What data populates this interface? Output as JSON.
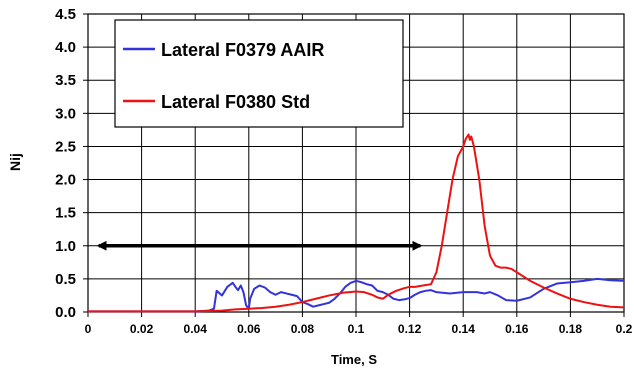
{
  "chart_data": {
    "type": "line",
    "title": "",
    "xlabel": "Time, S",
    "ylabel": "Nij",
    "xlim": [
      0,
      0.2
    ],
    "ylim": [
      0,
      4.5
    ],
    "x_ticks": [
      0,
      0.02,
      0.04,
      0.06,
      0.08,
      0.1,
      0.12,
      0.14,
      0.16,
      0.18,
      0.2
    ],
    "x_tick_labels": [
      "0",
      "0.02",
      "0.04",
      "0.06",
      "0.08",
      "0.1",
      "0.12",
      "0.14",
      "0.16",
      "0.18",
      "0.2"
    ],
    "y_ticks": [
      0,
      0.5,
      1,
      1.5,
      2,
      2.5,
      3,
      3.5,
      4,
      4.5
    ],
    "y_tick_labels": [
      "0.0",
      "0.5",
      "1.0",
      "1.5",
      "2.0",
      "2.5",
      "3.0",
      "3.5",
      "4.0",
      "4.5"
    ],
    "grid": true,
    "legend_position": "top-left",
    "series": [
      {
        "name": "Lateral F0379 AAIR",
        "color": "#3333dd",
        "points": [
          [
            0,
            0.01
          ],
          [
            0.02,
            0.01
          ],
          [
            0.04,
            0.01
          ],
          [
            0.045,
            0.02
          ],
          [
            0.047,
            0.05
          ],
          [
            0.048,
            0.32
          ],
          [
            0.05,
            0.25
          ],
          [
            0.052,
            0.38
          ],
          [
            0.054,
            0.44
          ],
          [
            0.055,
            0.38
          ],
          [
            0.056,
            0.33
          ],
          [
            0.057,
            0.4
          ],
          [
            0.058,
            0.3
          ],
          [
            0.059,
            0.1
          ],
          [
            0.06,
            0.05
          ],
          [
            0.0605,
            0.2
          ],
          [
            0.062,
            0.35
          ],
          [
            0.064,
            0.4
          ],
          [
            0.066,
            0.37
          ],
          [
            0.068,
            0.3
          ],
          [
            0.07,
            0.26
          ],
          [
            0.072,
            0.3
          ],
          [
            0.074,
            0.28
          ],
          [
            0.076,
            0.26
          ],
          [
            0.078,
            0.24
          ],
          [
            0.08,
            0.15
          ],
          [
            0.082,
            0.12
          ],
          [
            0.084,
            0.08
          ],
          [
            0.086,
            0.1
          ],
          [
            0.088,
            0.12
          ],
          [
            0.09,
            0.14
          ],
          [
            0.092,
            0.2
          ],
          [
            0.094,
            0.28
          ],
          [
            0.096,
            0.38
          ],
          [
            0.098,
            0.44
          ],
          [
            0.1,
            0.47
          ],
          [
            0.102,
            0.45
          ],
          [
            0.104,
            0.42
          ],
          [
            0.106,
            0.4
          ],
          [
            0.108,
            0.32
          ],
          [
            0.11,
            0.3
          ],
          [
            0.112,
            0.26
          ],
          [
            0.114,
            0.2
          ],
          [
            0.116,
            0.18
          ],
          [
            0.118,
            0.19
          ],
          [
            0.12,
            0.21
          ],
          [
            0.122,
            0.26
          ],
          [
            0.124,
            0.3
          ],
          [
            0.126,
            0.32
          ],
          [
            0.128,
            0.33
          ],
          [
            0.13,
            0.3
          ],
          [
            0.135,
            0.28
          ],
          [
            0.14,
            0.3
          ],
          [
            0.145,
            0.3
          ],
          [
            0.148,
            0.28
          ],
          [
            0.15,
            0.3
          ],
          [
            0.153,
            0.25
          ],
          [
            0.156,
            0.18
          ],
          [
            0.16,
            0.17
          ],
          [
            0.165,
            0.22
          ],
          [
            0.17,
            0.35
          ],
          [
            0.175,
            0.43
          ],
          [
            0.18,
            0.45
          ],
          [
            0.185,
            0.47
          ],
          [
            0.19,
            0.5
          ],
          [
            0.195,
            0.48
          ],
          [
            0.2,
            0.47
          ]
        ]
      },
      {
        "name": "Lateral F0380 Std",
        "color": "#ee1111",
        "points": [
          [
            0,
            0.01
          ],
          [
            0.02,
            0.01
          ],
          [
            0.04,
            0.01
          ],
          [
            0.05,
            0.02
          ],
          [
            0.055,
            0.04
          ],
          [
            0.06,
            0.05
          ],
          [
            0.065,
            0.06
          ],
          [
            0.07,
            0.08
          ],
          [
            0.075,
            0.11
          ],
          [
            0.08,
            0.15
          ],
          [
            0.085,
            0.2
          ],
          [
            0.09,
            0.25
          ],
          [
            0.095,
            0.29
          ],
          [
            0.1,
            0.31
          ],
          [
            0.103,
            0.3
          ],
          [
            0.106,
            0.26
          ],
          [
            0.108,
            0.22
          ],
          [
            0.11,
            0.2
          ],
          [
            0.112,
            0.26
          ],
          [
            0.115,
            0.32
          ],
          [
            0.118,
            0.36
          ],
          [
            0.12,
            0.38
          ],
          [
            0.122,
            0.38
          ],
          [
            0.125,
            0.4
          ],
          [
            0.128,
            0.42
          ],
          [
            0.13,
            0.6
          ],
          [
            0.132,
            1.0
          ],
          [
            0.134,
            1.5
          ],
          [
            0.136,
            2.0
          ],
          [
            0.138,
            2.35
          ],
          [
            0.14,
            2.5
          ],
          [
            0.141,
            2.62
          ],
          [
            0.142,
            2.68
          ],
          [
            0.1425,
            2.6
          ],
          [
            0.143,
            2.65
          ],
          [
            0.144,
            2.5
          ],
          [
            0.146,
            2.0
          ],
          [
            0.148,
            1.3
          ],
          [
            0.15,
            0.85
          ],
          [
            0.152,
            0.7
          ],
          [
            0.154,
            0.67
          ],
          [
            0.156,
            0.67
          ],
          [
            0.158,
            0.65
          ],
          [
            0.16,
            0.6
          ],
          [
            0.165,
            0.47
          ],
          [
            0.17,
            0.37
          ],
          [
            0.175,
            0.28
          ],
          [
            0.18,
            0.2
          ],
          [
            0.185,
            0.15
          ],
          [
            0.19,
            0.11
          ],
          [
            0.195,
            0.08
          ],
          [
            0.2,
            0.07
          ]
        ]
      }
    ],
    "annotations": [
      {
        "type": "double-arrow",
        "color": "#000000",
        "y": 1.0,
        "x_start": 0.004,
        "x_end": 0.124
      }
    ]
  }
}
